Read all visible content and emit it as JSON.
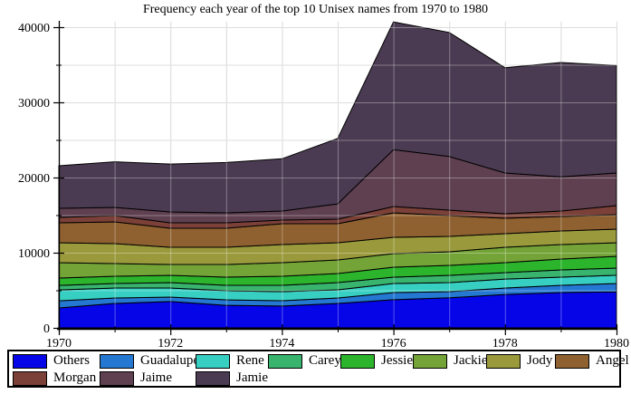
{
  "chart_data": {
    "type": "area",
    "stacked": true,
    "title": "Frequency each year of the top 10 Unisex names from 1970 to 1980",
    "xlabel": "",
    "ylabel": "",
    "x": [
      1970,
      1971,
      1972,
      1973,
      1974,
      1975,
      1976,
      1977,
      1978,
      1979,
      1980
    ],
    "xlim": [
      1970,
      1980
    ],
    "ylim": [
      0,
      40000
    ],
    "x_major_ticks": [
      1970,
      1972,
      1974,
      1976,
      1978,
      1980
    ],
    "x_minor_ticks": [
      1971,
      1973,
      1975,
      1977,
      1979
    ],
    "y_major_ticks": [
      0,
      10000,
      20000,
      30000,
      40000
    ],
    "y_minor_ticks": [
      5000,
      15000,
      25000,
      35000
    ],
    "grid": true,
    "legend_position": "bottom",
    "outline_color": "#000000",
    "gridline_color": "#cbcbcb",
    "series": [
      {
        "name": "Others",
        "color": "#0505e8",
        "values": [
          2650,
          3250,
          3500,
          3000,
          2900,
          3250,
          3750,
          4000,
          4450,
          4700,
          4800
        ]
      },
      {
        "name": "Guadalupe",
        "color": "#2478d2",
        "values": [
          950,
          730,
          600,
          740,
          710,
          730,
          950,
          820,
          850,
          960,
          1100
        ]
      },
      {
        "name": "Rene",
        "color": "#38cfc3",
        "values": [
          1450,
          1320,
          1200,
          1200,
          1210,
          1080,
          1200,
          1200,
          1200,
          1090,
          1100
        ]
      },
      {
        "name": "Carey",
        "color": "#38b46e",
        "values": [
          600,
          600,
          720,
          720,
          840,
          960,
          850,
          970,
          850,
          960,
          950
        ]
      },
      {
        "name": "Jessie",
        "color": "#2cb52c",
        "values": [
          980,
          970,
          970,
          1090,
          1210,
          1210,
          1320,
          1320,
          1330,
          1450,
          1570
        ]
      },
      {
        "name": "Jackie",
        "color": "#74a437",
        "values": [
          2050,
          1680,
          1440,
          1680,
          1810,
          1810,
          1810,
          1810,
          2040,
          1920,
          1810
        ]
      },
      {
        "name": "Jody",
        "color": "#9a9a3d",
        "values": [
          2650,
          2660,
          2290,
          2290,
          2400,
          2290,
          2170,
          2050,
          1810,
          1810,
          1800
        ]
      },
      {
        "name": "Angel",
        "color": "#8f6130",
        "values": [
          2650,
          2890,
          2530,
          2530,
          2780,
          2530,
          3250,
          2770,
          2050,
          1930,
          1930
        ]
      },
      {
        "name": "Morgan",
        "color": "#7b4038",
        "values": [
          720,
          840,
          730,
          730,
          480,
          600,
          850,
          720,
          600,
          720,
          1210
        ]
      },
      {
        "name": "Jaime",
        "color": "#5f4050",
        "values": [
          1200,
          1080,
          1440,
          1320,
          1200,
          2040,
          7550,
          7140,
          5420,
          4560,
          4330
        ]
      },
      {
        "name": "Jamie",
        "color": "#4b3b52",
        "values": [
          5670,
          6080,
          6380,
          6700,
          6960,
          8700,
          17000,
          16500,
          14000,
          15200,
          14300
        ]
      }
    ],
    "legend_labels": [
      "Others",
      "Guadalupe",
      "Rene",
      "Carey",
      "Jessie",
      "Jackie",
      "Jody",
      "Angel",
      "Morgan",
      "Jaime",
      "Jamie"
    ]
  }
}
